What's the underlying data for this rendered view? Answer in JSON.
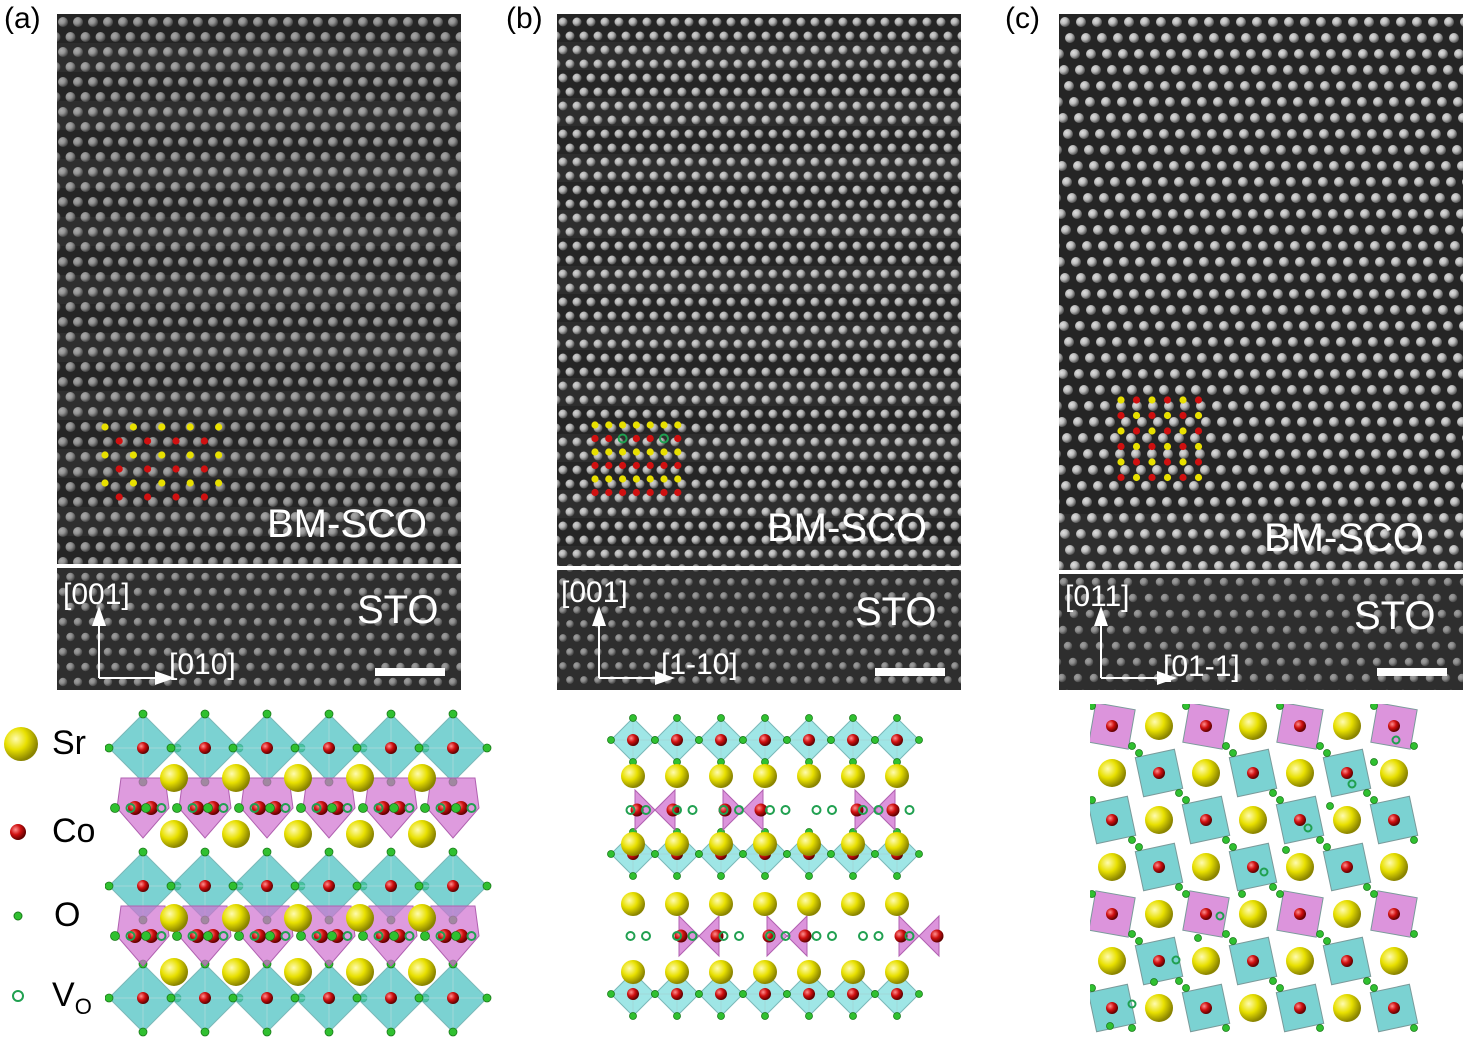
{
  "panels": [
    {
      "id": "a",
      "label": "(a)",
      "film": "BM-SCO",
      "substrate": "STO",
      "axis_vertical": "[001]",
      "axis_horizontal": "[010]"
    },
    {
      "id": "b",
      "label": "(b)",
      "film": "BM-SCO",
      "substrate": "STO",
      "axis_vertical": "[001]",
      "axis_horizontal": "[1-10]"
    },
    {
      "id": "c",
      "label": "(c)",
      "film": "BM-SCO",
      "substrate": "STO",
      "axis_vertical": "[011]",
      "axis_horizontal": "[01-1]"
    }
  ],
  "legend": {
    "sr": "Sr",
    "co": "Co",
    "o": "O",
    "vo_main": "V",
    "vo_sub": "O"
  },
  "colors": {
    "sr": "#e8e000",
    "co": "#d01010",
    "o": "#30c030",
    "vacancy": "#20a050",
    "octahedron": "#4fc3c3",
    "tetrahedron": "#d070d0",
    "tem_bg": "#2e2e2e",
    "atom_bright": "#d8d8d8"
  }
}
